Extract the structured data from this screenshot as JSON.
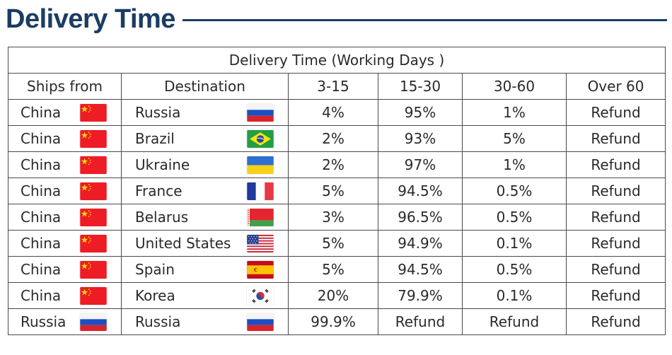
{
  "header": {
    "title": "Delivery Time"
  },
  "table": {
    "caption": "Delivery Time (Working Days )",
    "columns": [
      "Ships from",
      "Destination",
      "3-15",
      "15-30",
      "30-60",
      "Over 60"
    ],
    "rows": [
      {
        "from": "China",
        "from_flag": "china-flag-icon",
        "to": "Russia",
        "to_flag": "russia-flag-icon",
        "d3_15": "4%",
        "d15_30": "95%",
        "d30_60": "1%",
        "over60": "Refund"
      },
      {
        "from": "China",
        "from_flag": "china-flag-icon",
        "to": "Brazil",
        "to_flag": "brazil-flag-icon",
        "d3_15": "2%",
        "d15_30": "93%",
        "d30_60": "5%",
        "over60": "Refund"
      },
      {
        "from": "China",
        "from_flag": "china-flag-icon",
        "to": "Ukraine",
        "to_flag": "ukraine-flag-icon",
        "d3_15": "2%",
        "d15_30": "97%",
        "d30_60": "1%",
        "over60": "Refund"
      },
      {
        "from": "China",
        "from_flag": "china-flag-icon",
        "to": "France",
        "to_flag": "france-flag-icon",
        "d3_15": "5%",
        "d15_30": "94.5%",
        "d30_60": "0.5%",
        "over60": "Refund"
      },
      {
        "from": "China",
        "from_flag": "china-flag-icon",
        "to": "Belarus",
        "to_flag": "belarus-flag-icon",
        "d3_15": "3%",
        "d15_30": "96.5%",
        "d30_60": "0.5%",
        "over60": "Refund"
      },
      {
        "from": "China",
        "from_flag": "china-flag-icon",
        "to": "United States",
        "to_flag": "usa-flag-icon",
        "d3_15": "5%",
        "d15_30": "94.9%",
        "d30_60": "0.1%",
        "over60": "Refund"
      },
      {
        "from": "China",
        "from_flag": "china-flag-icon",
        "to": "Spain",
        "to_flag": "spain-flag-icon",
        "d3_15": "5%",
        "d15_30": "94.5%",
        "d30_60": "0.5%",
        "over60": "Refund"
      },
      {
        "from": "China",
        "from_flag": "china-flag-icon",
        "to": "Korea",
        "to_flag": "korea-flag-icon",
        "d3_15": "20%",
        "d15_30": "79.9%",
        "d30_60": "0.1%",
        "over60": "Refund"
      },
      {
        "from": "Russia",
        "from_flag": "russia-flag-icon",
        "to": "Russia",
        "to_flag": "russia-flag-icon",
        "d3_15": "99.9%",
        "d15_30": "Refund",
        "d30_60": "Refund",
        "over60": "Refund"
      }
    ]
  },
  "colors": {
    "title": "#1b3d63",
    "border": "#4a4a4a",
    "text": "#2a2a2a"
  }
}
